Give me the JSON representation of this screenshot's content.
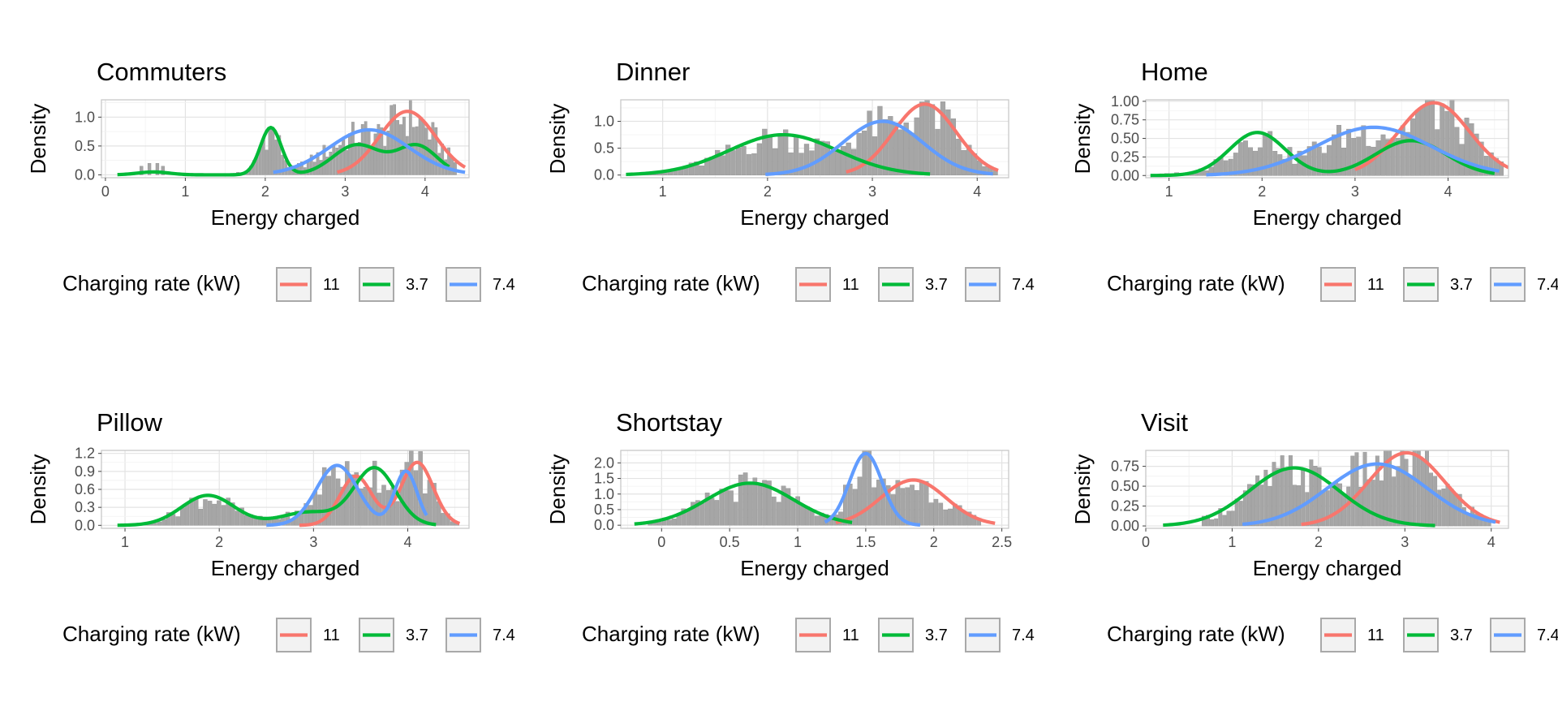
{
  "legend": {
    "title": "Charging rate (kW)",
    "items": [
      {
        "label": "11",
        "color": "#F8766D"
      },
      {
        "label": "3.7",
        "color": "#00BA38"
      },
      {
        "label": "7.4",
        "color": "#619CFF"
      }
    ]
  },
  "histogram_color": "#A6A6A6",
  "chart_data": [
    {
      "type": "histogram+density",
      "title": "Commuters",
      "xlabel": "Energy charged",
      "ylabel": "Density",
      "xlim": [
        -0.05,
        4.55
      ],
      "ylim": [
        -0.05,
        1.3
      ],
      "xticks": [
        0,
        1,
        2,
        3,
        4
      ],
      "yticks": [
        0.0,
        0.5,
        1.0
      ],
      "ytick_labels": [
        "0.0",
        "0.5",
        "1.0"
      ],
      "hist_range": [
        1.6,
        4.4
      ],
      "hist_extra": [
        [
          0.45,
          0.15
        ],
        [
          0.55,
          0.2
        ],
        [
          0.65,
          0.2
        ],
        [
          0.72,
          0.15
        ]
      ],
      "series": [
        {
          "name": "11",
          "range": [
            2.9,
            4.5
          ],
          "components": [
            [
              1.1,
              3.78,
              0.35
            ]
          ]
        },
        {
          "name": "3.7",
          "range": [
            0.15,
            4.3
          ],
          "components": [
            [
              0.05,
              0.6,
              0.2
            ],
            [
              0.82,
              2.07,
              0.13
            ],
            [
              0.52,
              3.15,
              0.3
            ],
            [
              0.5,
              3.9,
              0.25
            ]
          ]
        },
        {
          "name": "7.4",
          "range": [
            2.1,
            4.5
          ],
          "components": [
            [
              0.78,
              3.3,
              0.5
            ]
          ]
        }
      ]
    },
    {
      "type": "histogram+density",
      "title": "Dinner",
      "xlabel": "Energy charged",
      "ylabel": "Density",
      "xlim": [
        0.6,
        4.3
      ],
      "ylim": [
        -0.05,
        1.4
      ],
      "xticks": [
        1,
        2,
        3,
        4
      ],
      "yticks": [
        0.0,
        0.5,
        1.0
      ],
      "ytick_labels": [
        "0.0",
        "0.5",
        "1.0"
      ],
      "hist_range": [
        0.7,
        4.2
      ],
      "hist_extra": [],
      "series": [
        {
          "name": "11",
          "range": [
            2.75,
            4.2
          ],
          "components": [
            [
              1.32,
              3.5,
              0.3
            ]
          ]
        },
        {
          "name": "3.7",
          "range": [
            0.65,
            3.55
          ],
          "components": [
            [
              0.75,
              2.15,
              0.52
            ]
          ]
        },
        {
          "name": "7.4",
          "range": [
            1.98,
            4.15
          ],
          "components": [
            [
              1.0,
              3.1,
              0.38
            ]
          ]
        }
      ]
    },
    {
      "type": "histogram+density",
      "title": "Home",
      "xlabel": "Energy charged",
      "ylabel": "Density",
      "xlim": [
        0.75,
        4.65
      ],
      "ylim": [
        -0.03,
        1.02
      ],
      "xticks": [
        1,
        2,
        3,
        4
      ],
      "yticks": [
        0.0,
        0.25,
        0.5,
        0.75,
        1.0
      ],
      "ytick_labels": [
        "0.00",
        "0.25",
        "0.50",
        "0.75",
        "1.00"
      ],
      "hist_range": [
        0.9,
        4.6
      ],
      "hist_extra": [],
      "series": [
        {
          "name": "11",
          "range": [
            3.0,
            4.65
          ],
          "components": [
            [
              0.98,
              3.85,
              0.38
            ]
          ]
        },
        {
          "name": "3.7",
          "range": [
            0.8,
            4.5
          ],
          "components": [
            [
              0.58,
              1.95,
              0.3
            ],
            [
              0.47,
              3.6,
              0.38
            ]
          ]
        },
        {
          "name": "7.4",
          "range": [
            1.4,
            4.55
          ],
          "components": [
            [
              0.65,
              3.2,
              0.62
            ]
          ]
        }
      ]
    },
    {
      "type": "histogram+density",
      "title": "Pillow",
      "xlabel": "Energy charged",
      "ylabel": "Density",
      "xlim": [
        0.75,
        4.65
      ],
      "ylim": [
        -0.05,
        1.25
      ],
      "xticks": [
        1,
        2,
        3,
        4
      ],
      "yticks": [
        0.0,
        0.3,
        0.6,
        0.9,
        1.2
      ],
      "ytick_labels": [
        "0.0",
        "0.3",
        "0.6",
        "0.9",
        "1.2"
      ],
      "hist_range": [
        1.15,
        4.55
      ],
      "hist_extra": [],
      "series": [
        {
          "name": "11",
          "range": [
            2.85,
            4.55
          ],
          "components": [
            [
              0.82,
              3.45,
              0.17
            ],
            [
              1.05,
              4.1,
              0.17
            ]
          ]
        },
        {
          "name": "3.7",
          "range": [
            0.92,
            4.3
          ],
          "components": [
            [
              0.5,
              1.88,
              0.28
            ],
            [
              0.22,
              2.95,
              0.3
            ],
            [
              0.95,
              3.65,
              0.22
            ]
          ]
        },
        {
          "name": "7.4",
          "range": [
            2.5,
            4.2
          ],
          "components": [
            [
              1.0,
              3.25,
              0.22
            ],
            [
              0.9,
              3.98,
              0.12
            ]
          ]
        }
      ]
    },
    {
      "type": "histogram+density",
      "title": "Shortstay",
      "xlabel": "Energy charged",
      "ylabel": "Density",
      "xlim": [
        -0.3,
        2.55
      ],
      "ylim": [
        -0.1,
        2.4
      ],
      "xticks": [
        0.0,
        0.5,
        1.0,
        1.5,
        2.0,
        2.5
      ],
      "yticks": [
        0.0,
        0.5,
        1.0,
        1.5,
        2.0
      ],
      "ytick_labels": [
        "0.0",
        "0.5",
        "1.0",
        "1.5",
        "2.0"
      ],
      "hist_range": [
        -0.1,
        2.35
      ],
      "hist_extra": [],
      "series": [
        {
          "name": "11",
          "range": [
            1.28,
            2.45
          ],
          "components": [
            [
              1.45,
              1.85,
              0.24
            ]
          ]
        },
        {
          "name": "3.7",
          "range": [
            -0.2,
            1.4
          ],
          "components": [
            [
              1.35,
              0.65,
              0.32
            ]
          ]
        },
        {
          "name": "7.4",
          "range": [
            1.2,
            1.9
          ],
          "components": [
            [
              2.3,
              1.5,
              0.12
            ]
          ]
        }
      ]
    },
    {
      "type": "histogram+density",
      "title": "Visit",
      "xlabel": "Energy charged",
      "ylabel": "Density",
      "xlim": [
        0,
        4.2
      ],
      "ylim": [
        -0.03,
        0.95
      ],
      "xticks": [
        0,
        1,
        2,
        3,
        4
      ],
      "yticks": [
        0.0,
        0.25,
        0.5,
        0.75
      ],
      "ytick_labels": [
        "0.00",
        "0.25",
        "0.50",
        "0.75"
      ],
      "hist_range": [
        0.65,
        4.0
      ],
      "hist_extra": [],
      "series": [
        {
          "name": "11",
          "range": [
            1.8,
            4.1
          ],
          "components": [
            [
              0.92,
              3.02,
              0.44
            ]
          ]
        },
        {
          "name": "3.7",
          "range": [
            0.2,
            3.35
          ],
          "components": [
            [
              0.73,
              1.72,
              0.52
            ]
          ]
        },
        {
          "name": "7.4",
          "range": [
            1.12,
            4.05
          ],
          "components": [
            [
              0.78,
              2.68,
              0.58
            ]
          ]
        }
      ]
    }
  ]
}
